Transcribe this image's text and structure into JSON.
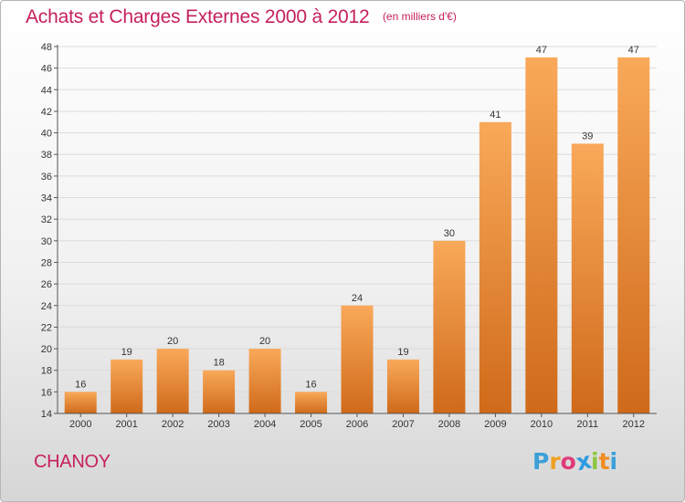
{
  "header": {
    "title": "Achats et Charges Externes 2000 à 2012",
    "subtitle": "(en milliers d'€)"
  },
  "footer": {
    "place": "CHANOY",
    "logo": {
      "letters": [
        "P",
        "r",
        "o",
        "x",
        "i",
        "t",
        "i"
      ],
      "colors": [
        "#3aa0d8",
        "#f0a020",
        "#e03a7a",
        "#2e9be0",
        "#8cc63f",
        "#f08c20",
        "#3aa0d8"
      ]
    }
  },
  "colors": {
    "bar_top": "#f9a95a",
    "bar_bottom": "#cf6a1a",
    "accent": "#c6205f",
    "grid": "#dcdcdc"
  },
  "chart_data": {
    "type": "bar",
    "categories": [
      "2000",
      "2001",
      "2002",
      "2003",
      "2004",
      "2005",
      "2006",
      "2007",
      "2008",
      "2009",
      "2010",
      "2011",
      "2012"
    ],
    "values": [
      16,
      19,
      20,
      18,
      20,
      16,
      24,
      19,
      30,
      41,
      47,
      39,
      47
    ],
    "data_labels": [
      "16",
      "19",
      "20",
      "18",
      "20",
      "16",
      "24",
      "19",
      "30",
      "41",
      "47",
      "39",
      "47"
    ],
    "title": "Achats et Charges Externes 2000 à 2012",
    "subtitle": "(en milliers d'€)",
    "xlabel": "",
    "ylabel": "",
    "ylim": [
      14,
      48
    ],
    "yticks": [
      14,
      16,
      18,
      20,
      22,
      24,
      26,
      28,
      30,
      32,
      34,
      36,
      38,
      40,
      42,
      44,
      46,
      48
    ],
    "grid": true
  }
}
